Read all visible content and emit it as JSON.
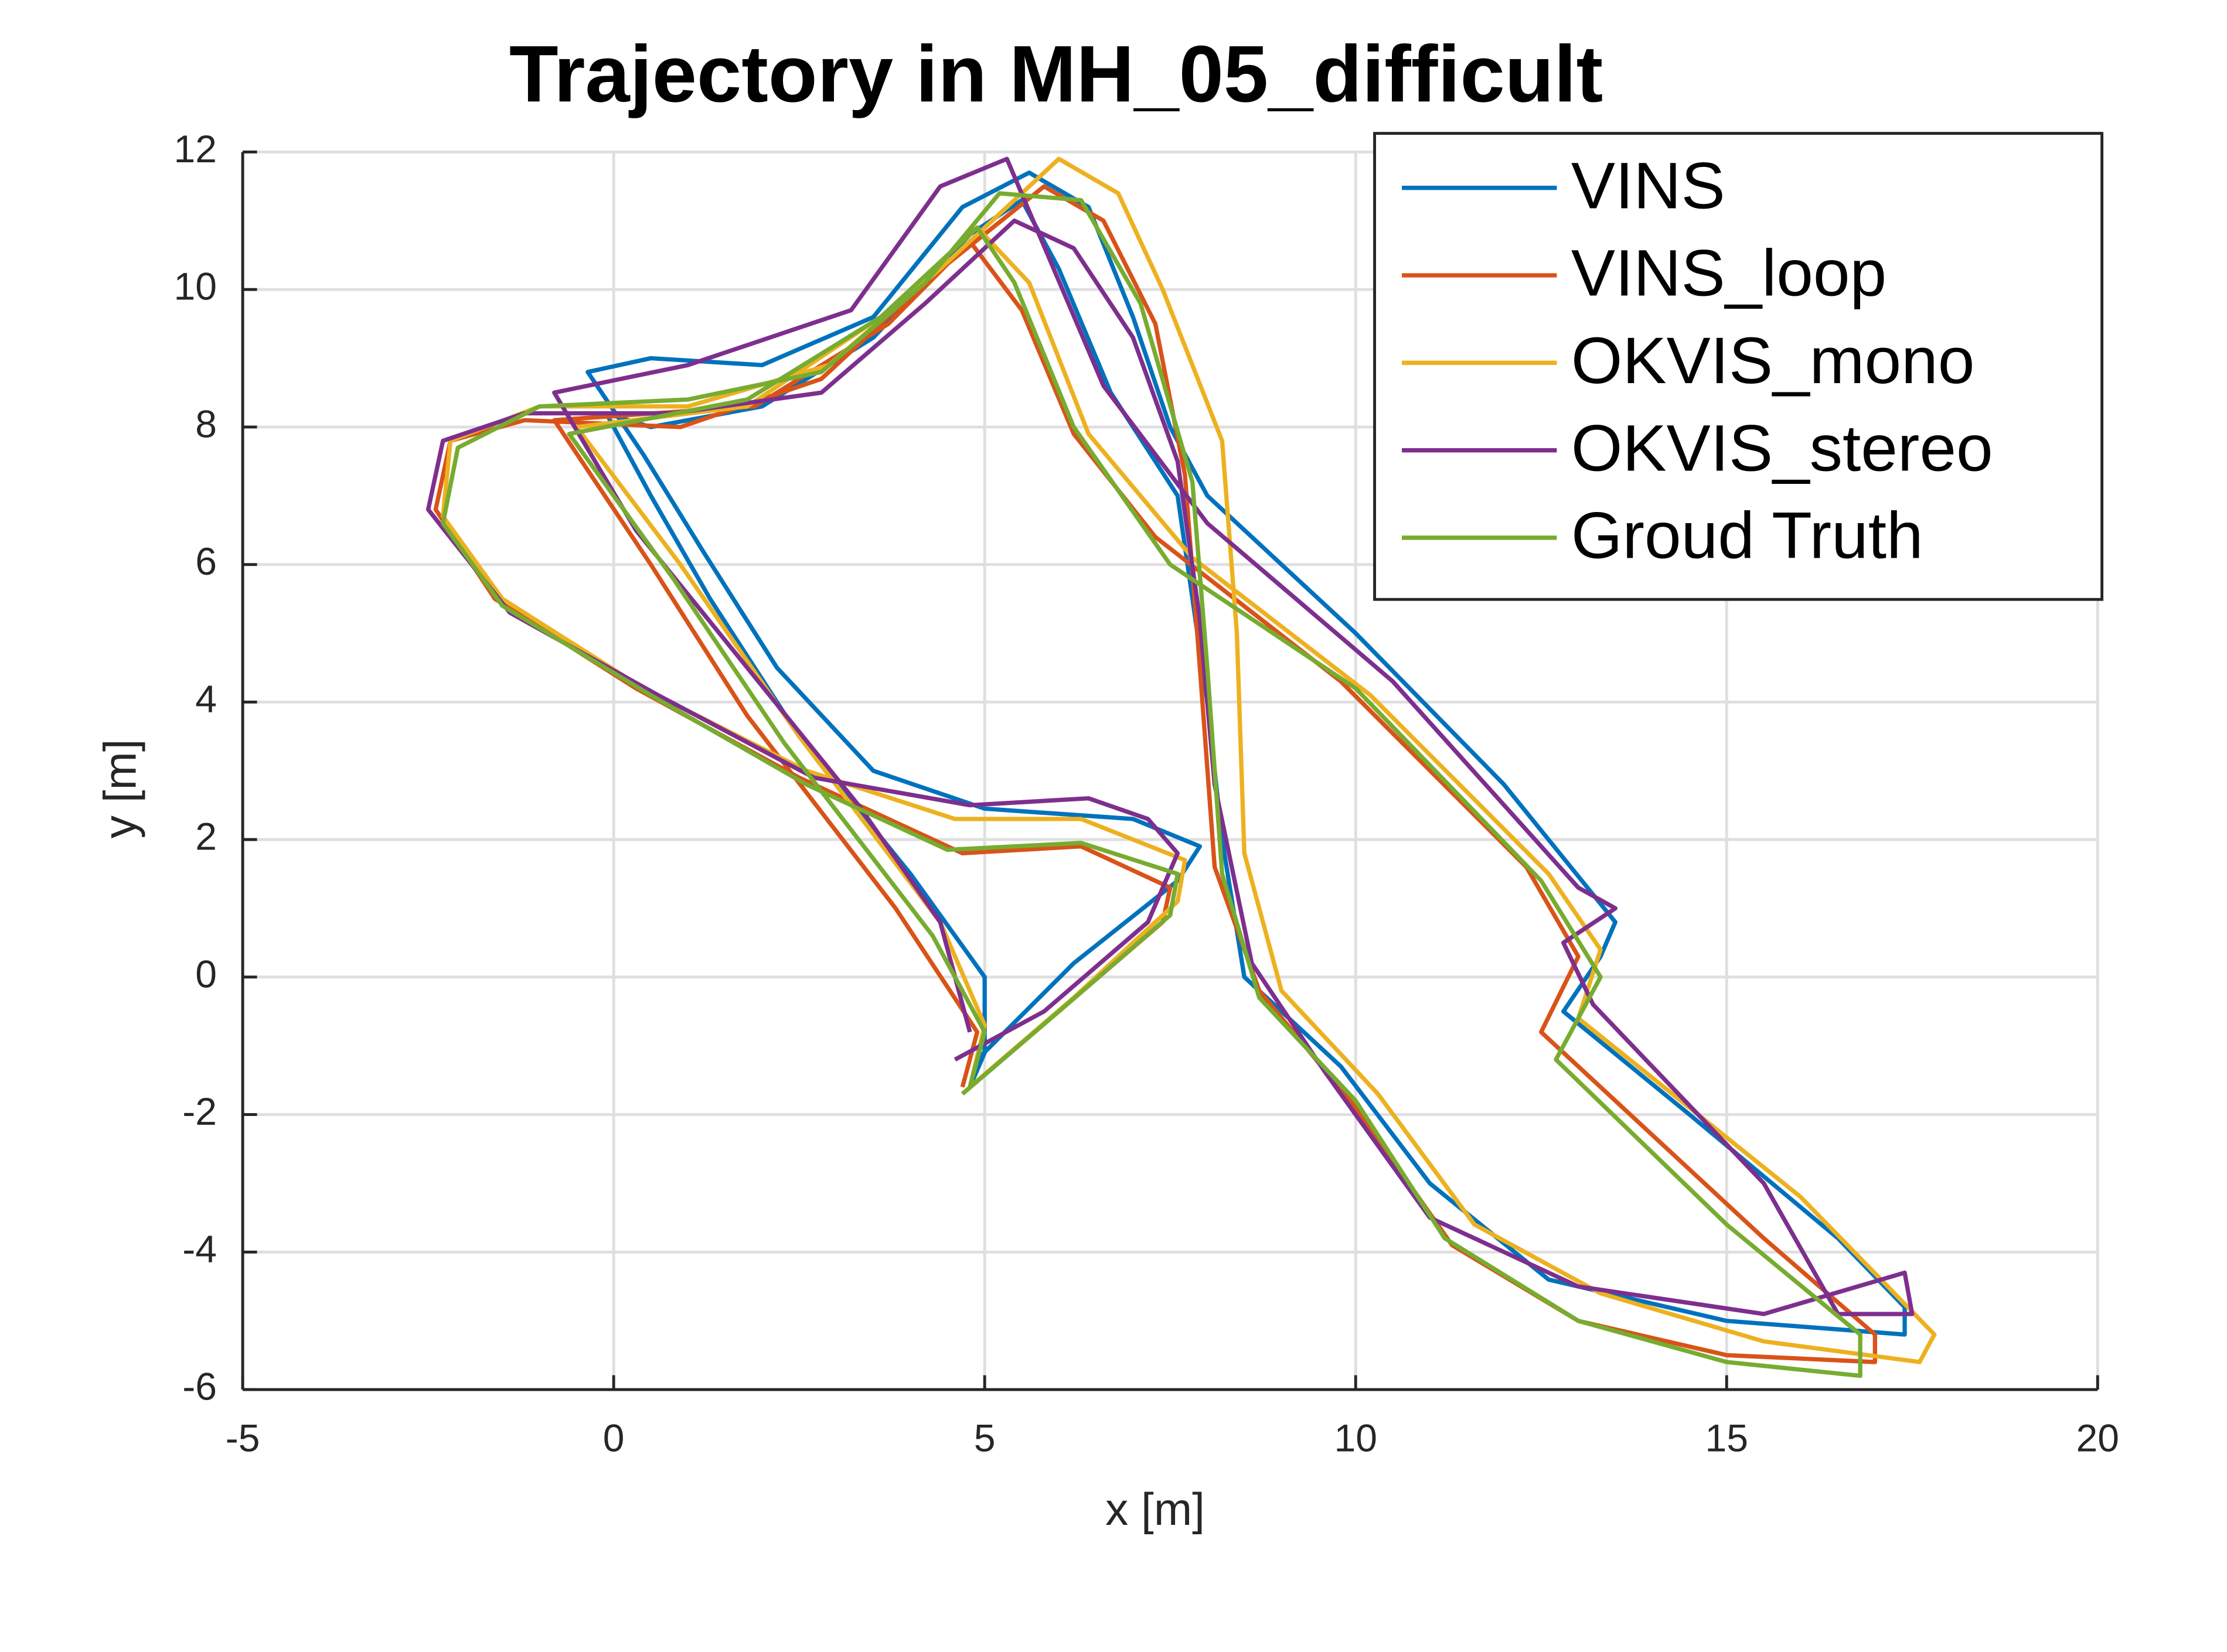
{
  "chart_data": {
    "type": "line",
    "title": "Trajectory in MH_05_difficult",
    "x_label": "x [m]",
    "y_label": "y [m]",
    "xlim": [
      -5,
      20
    ],
    "xticks": [
      -5,
      0,
      5,
      10,
      15,
      20
    ],
    "ylim": [
      -6,
      12
    ],
    "yticks": [
      -6,
      -4,
      -2,
      0,
      2,
      4,
      6,
      8,
      10,
      12
    ],
    "grid": true,
    "legend_loc": "upper right",
    "series": [
      {
        "name": "VINS",
        "color": "#0072bd",
        "x": [
          4.9,
          6.2,
          7.6,
          7.9,
          7,
          5,
          3.5,
          2.2,
          1.2,
          0.4,
          -0.35,
          0.5,
          2,
          3.5,
          4.7,
          5.6,
          6.4,
          7,
          7.5,
          8,
          10,
          12,
          13.5,
          13.3,
          12.8,
          14.5,
          16.5,
          17.4,
          17.4,
          15,
          12.6,
          11,
          9.8,
          8.5,
          8.2,
          8,
          7.6,
          6.7,
          6,
          5.5,
          4.8,
          3.5,
          2,
          0.5,
          -0.1,
          0.5,
          1.3,
          2.5,
          4,
          5,
          5,
          4.8
        ],
        "values": [
          -1.2,
          0.2,
          1.4,
          1.9,
          2.3,
          2.45,
          3,
          4.5,
          6.2,
          7.6,
          8.8,
          9,
          8.9,
          9.6,
          11.2,
          11.7,
          11.2,
          9.6,
          8,
          7,
          5,
          2.8,
          0.8,
          0.3,
          -0.5,
          -2,
          -3.8,
          -4.8,
          -5.2,
          -5,
          -4.4,
          -3,
          -1.3,
          0,
          2,
          4,
          7,
          8.5,
          10.3,
          11.3,
          10.8,
          9.3,
          8.3,
          8,
          8.2,
          7,
          5.5,
          3.5,
          1.5,
          0,
          -1.1,
          -1.6
        ]
      },
      {
        "name": "VINS_loop",
        "color": "#d95319",
        "x": [
          4.7,
          6,
          7.4,
          7.5,
          6.3,
          4.7,
          2.5,
          0.3,
          -1.6,
          -2.4,
          -2.2,
          -1.2,
          0.9,
          2.8,
          4.3,
          5.8,
          6.6,
          7.3,
          7.7,
          7.9,
          8.1,
          8.7,
          10,
          11.3,
          13,
          15,
          17,
          17,
          15.5,
          12.5,
          13,
          12.3,
          9.8,
          7.3,
          6.2,
          5.5,
          4.8,
          3.7,
          1.9,
          -0.8,
          0.5,
          1.8,
          3.8,
          4.9,
          4.7
        ],
        "values": [
          -1.7,
          -0.5,
          0.8,
          1.3,
          1.9,
          1.8,
          2.9,
          4.2,
          5.5,
          6.8,
          7.8,
          8.1,
          8,
          8.7,
          10.2,
          11.5,
          11,
          9.5,
          7.3,
          4.5,
          1.6,
          -0.2,
          -1.9,
          -3.9,
          -5,
          -5.5,
          -5.6,
          -5.2,
          -3.8,
          -0.8,
          0.3,
          1.6,
          4.3,
          6.4,
          7.9,
          9.7,
          10.7,
          9.5,
          8.3,
          8.1,
          6,
          3.8,
          1,
          -0.8,
          -1.6
        ]
      },
      {
        "name": "OKVIS_mono",
        "color": "#edb120",
        "x": [
          4.8,
          6.2,
          7.6,
          7.7,
          6.3,
          4.6,
          2.6,
          0.4,
          -1.5,
          -2.3,
          -2.2,
          -1,
          1,
          2.9,
          4.4,
          6,
          6.8,
          7.4,
          8.2,
          8.4,
          8.5,
          9,
          10.3,
          11.6,
          13.3,
          15.5,
          17.6,
          17.8,
          16,
          13,
          13.3,
          12.6,
          10.2,
          7.8,
          6.4,
          5.6,
          4.9,
          3.6,
          1.8,
          -0.5,
          0.9,
          2.5,
          4.4,
          5,
          4.8
        ],
        "values": [
          -1.6,
          -0.3,
          1.1,
          1.7,
          2.3,
          2.3,
          3,
          4.2,
          5.5,
          6.7,
          7.8,
          8.3,
          8.3,
          8.9,
          10.3,
          11.9,
          11.4,
          10,
          7.8,
          5,
          1.8,
          -0.2,
          -1.7,
          -3.6,
          -4.6,
          -5.3,
          -5.6,
          -5.2,
          -3.2,
          -0.6,
          0.4,
          1.5,
          4.1,
          6.1,
          7.9,
          10.1,
          10.9,
          9.6,
          8.3,
          8,
          6,
          3.5,
          0.8,
          -0.7,
          -1.6
        ]
      },
      {
        "name": "OKVIS_stereo",
        "color": "#7e2f8e",
        "x": [
          4.6,
          5.8,
          7.2,
          7.6,
          7.2,
          6.4,
          4.8,
          2.7,
          0.6,
          -1.4,
          -2.5,
          -2.3,
          -1.2,
          0.8,
          2.8,
          4.2,
          5.4,
          6.2,
          7,
          7.6,
          7.9,
          8.1,
          8.6,
          9.6,
          11,
          13,
          15.5,
          17.4,
          17.5,
          16.5,
          15.5,
          13.2,
          12.8,
          13.5,
          13,
          10.5,
          8,
          6.6,
          5.3,
          4.4,
          3.2,
          1,
          -0.8,
          0.3,
          1.8,
          3.3,
          4.4,
          4.8
        ],
        "values": [
          -1.2,
          -0.5,
          0.8,
          1.8,
          2.3,
          2.6,
          2.5,
          2.9,
          4.1,
          5.3,
          6.8,
          7.8,
          8.2,
          8.2,
          8.5,
          9.8,
          11,
          10.6,
          9.3,
          7.5,
          5.2,
          2.8,
          0.2,
          -1.4,
          -3.5,
          -4.5,
          -4.9,
          -4.3,
          -4.9,
          -4.9,
          -3,
          -0.4,
          0.5,
          1,
          1.3,
          4.3,
          6.6,
          8.6,
          11.9,
          11.5,
          9.7,
          8.9,
          8.5,
          6.5,
          4.5,
          2.5,
          0.8,
          -0.8
        ]
      },
      {
        "name": "Groud Truth",
        "color": "#77ac30",
        "x": [
          4.7,
          6,
          7.5,
          7.6,
          6.3,
          4.5,
          2.6,
          0.5,
          -1.5,
          -2.3,
          -2.1,
          -1,
          1,
          2.8,
          4.2,
          5.2,
          6.3,
          7.1,
          7.8,
          8,
          8.2,
          8.7,
          10,
          11.2,
          13,
          15,
          16.8,
          16.8,
          15,
          12.7,
          13.3,
          12.5,
          10,
          7.5,
          6.2,
          5.4,
          4.9,
          3.6,
          1.8,
          -0.6,
          0.8,
          2.3,
          4.3,
          5,
          4.8
        ],
        "values": [
          -1.7,
          -0.5,
          0.9,
          1.5,
          1.95,
          1.85,
          2.8,
          4.1,
          5.4,
          6.6,
          7.7,
          8.3,
          8.4,
          8.8,
          10.1,
          11.4,
          11.3,
          9.8,
          7.2,
          4.5,
          1.5,
          -0.3,
          -1.8,
          -3.8,
          -5,
          -5.6,
          -5.8,
          -5.2,
          -3.6,
          -1.2,
          0,
          1.4,
          4.2,
          6,
          8,
          10.1,
          10.9,
          9.6,
          8.4,
          7.9,
          5.8,
          3.4,
          0.6,
          -0.8,
          -1.6
        ]
      }
    ]
  }
}
